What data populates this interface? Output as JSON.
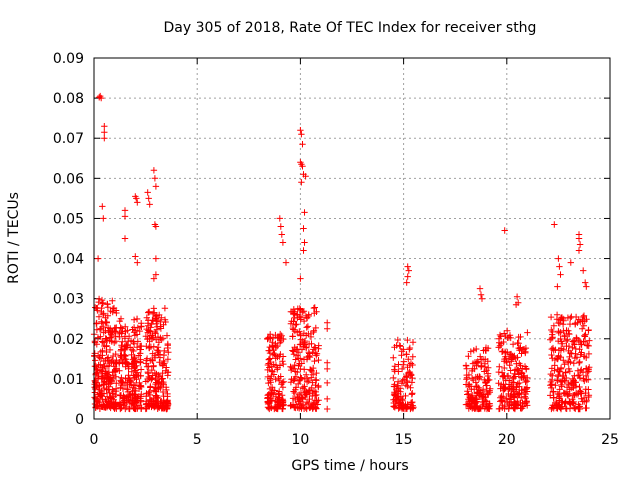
{
  "chart_data": {
    "type": "scatter",
    "title": "Day 305 of 2018, Rate Of TEC Index for receiver sthg",
    "xlabel": "GPS time / hours",
    "ylabel": "ROTI / TECUs",
    "xlim": [
      0,
      25
    ],
    "ylim": [
      0,
      0.09
    ],
    "xticks": [
      0,
      5,
      10,
      15,
      20,
      25
    ],
    "xtick_labels": [
      "0",
      "5",
      "10",
      "15",
      "20",
      "25"
    ],
    "yticks": [
      0,
      0.01,
      0.02,
      0.03,
      0.04,
      0.05,
      0.06,
      0.07,
      0.08,
      0.09
    ],
    "ytick_labels": [
      "0",
      "0.01",
      "0.02",
      "0.03",
      "0.04",
      "0.05",
      "0.06",
      "0.07",
      "0.08",
      "0.09"
    ],
    "grid": true,
    "marker": "+",
    "color": "#ff0000",
    "clusters": [
      {
        "x_start": 0.0,
        "x_end": 1.1,
        "typical_max": 0.03,
        "n": 260
      },
      {
        "x_start": 1.2,
        "x_end": 2.3,
        "typical_max": 0.025,
        "n": 220
      },
      {
        "x_start": 2.5,
        "x_end": 3.6,
        "typical_max": 0.028,
        "n": 230
      },
      {
        "x_start": 8.4,
        "x_end": 9.2,
        "typical_max": 0.022,
        "n": 140
      },
      {
        "x_start": 9.5,
        "x_end": 10.9,
        "typical_max": 0.028,
        "n": 220
      },
      {
        "x_start": 14.5,
        "x_end": 15.5,
        "typical_max": 0.02,
        "n": 120
      },
      {
        "x_start": 18.0,
        "x_end": 19.2,
        "typical_max": 0.018,
        "n": 160
      },
      {
        "x_start": 19.6,
        "x_end": 21.0,
        "typical_max": 0.022,
        "n": 200
      },
      {
        "x_start": 22.1,
        "x_end": 24.0,
        "typical_max": 0.026,
        "n": 280
      }
    ],
    "outliers": [
      {
        "x": 0.3,
        "y": 0.0805
      },
      {
        "x": 0.35,
        "y": 0.08
      },
      {
        "x": 0.25,
        "y": 0.0802
      },
      {
        "x": 0.5,
        "y": 0.073
      },
      {
        "x": 0.5,
        "y": 0.0715
      },
      {
        "x": 0.5,
        "y": 0.07
      },
      {
        "x": 0.4,
        "y": 0.053
      },
      {
        "x": 0.45,
        "y": 0.05
      },
      {
        "x": 0.2,
        "y": 0.04
      },
      {
        "x": 1.5,
        "y": 0.052
      },
      {
        "x": 1.5,
        "y": 0.0505
      },
      {
        "x": 1.5,
        "y": 0.045
      },
      {
        "x": 2.0,
        "y": 0.0555
      },
      {
        "x": 2.05,
        "y": 0.055
      },
      {
        "x": 2.1,
        "y": 0.054
      },
      {
        "x": 2.0,
        "y": 0.0405
      },
      {
        "x": 2.1,
        "y": 0.039
      },
      {
        "x": 2.6,
        "y": 0.0565
      },
      {
        "x": 2.65,
        "y": 0.055
      },
      {
        "x": 2.7,
        "y": 0.0535
      },
      {
        "x": 2.9,
        "y": 0.062
      },
      {
        "x": 2.95,
        "y": 0.06
      },
      {
        "x": 3.0,
        "y": 0.058
      },
      {
        "x": 2.95,
        "y": 0.0485
      },
      {
        "x": 3.0,
        "y": 0.048
      },
      {
        "x": 3.0,
        "y": 0.04
      },
      {
        "x": 2.9,
        "y": 0.035
      },
      {
        "x": 3.0,
        "y": 0.036
      },
      {
        "x": 9.0,
        "y": 0.05
      },
      {
        "x": 9.05,
        "y": 0.048
      },
      {
        "x": 9.1,
        "y": 0.046
      },
      {
        "x": 9.15,
        "y": 0.044
      },
      {
        "x": 9.3,
        "y": 0.039
      },
      {
        "x": 10.0,
        "y": 0.072
      },
      {
        "x": 10.05,
        "y": 0.071
      },
      {
        "x": 10.1,
        "y": 0.0685
      },
      {
        "x": 10.0,
        "y": 0.064
      },
      {
        "x": 10.05,
        "y": 0.0635
      },
      {
        "x": 10.1,
        "y": 0.063
      },
      {
        "x": 10.15,
        "y": 0.061
      },
      {
        "x": 10.25,
        "y": 0.0605
      },
      {
        "x": 10.05,
        "y": 0.059
      },
      {
        "x": 10.2,
        "y": 0.0515
      },
      {
        "x": 10.15,
        "y": 0.0475
      },
      {
        "x": 10.2,
        "y": 0.044
      },
      {
        "x": 10.15,
        "y": 0.042
      },
      {
        "x": 10.0,
        "y": 0.035
      },
      {
        "x": 11.3,
        "y": 0.024
      },
      {
        "x": 11.3,
        "y": 0.0225
      },
      {
        "x": 11.3,
        "y": 0.014
      },
      {
        "x": 11.3,
        "y": 0.0125
      },
      {
        "x": 11.3,
        "y": 0.009
      },
      {
        "x": 11.3,
        "y": 0.005
      },
      {
        "x": 11.3,
        "y": 0.0025
      },
      {
        "x": 15.2,
        "y": 0.038
      },
      {
        "x": 15.25,
        "y": 0.037
      },
      {
        "x": 15.2,
        "y": 0.0355
      },
      {
        "x": 15.15,
        "y": 0.034
      },
      {
        "x": 18.7,
        "y": 0.0325
      },
      {
        "x": 18.75,
        "y": 0.031
      },
      {
        "x": 18.8,
        "y": 0.03
      },
      {
        "x": 19.9,
        "y": 0.047
      },
      {
        "x": 20.5,
        "y": 0.0305
      },
      {
        "x": 20.55,
        "y": 0.029
      },
      {
        "x": 20.45,
        "y": 0.0285
      },
      {
        "x": 22.3,
        "y": 0.0485
      },
      {
        "x": 22.5,
        "y": 0.04
      },
      {
        "x": 22.55,
        "y": 0.038
      },
      {
        "x": 22.6,
        "y": 0.036
      },
      {
        "x": 22.45,
        "y": 0.033
      },
      {
        "x": 23.1,
        "y": 0.039
      },
      {
        "x": 23.5,
        "y": 0.046
      },
      {
        "x": 23.5,
        "y": 0.045
      },
      {
        "x": 23.55,
        "y": 0.0435
      },
      {
        "x": 23.5,
        "y": 0.042
      },
      {
        "x": 23.7,
        "y": 0.037
      },
      {
        "x": 23.8,
        "y": 0.034
      },
      {
        "x": 23.85,
        "y": 0.033
      }
    ]
  }
}
